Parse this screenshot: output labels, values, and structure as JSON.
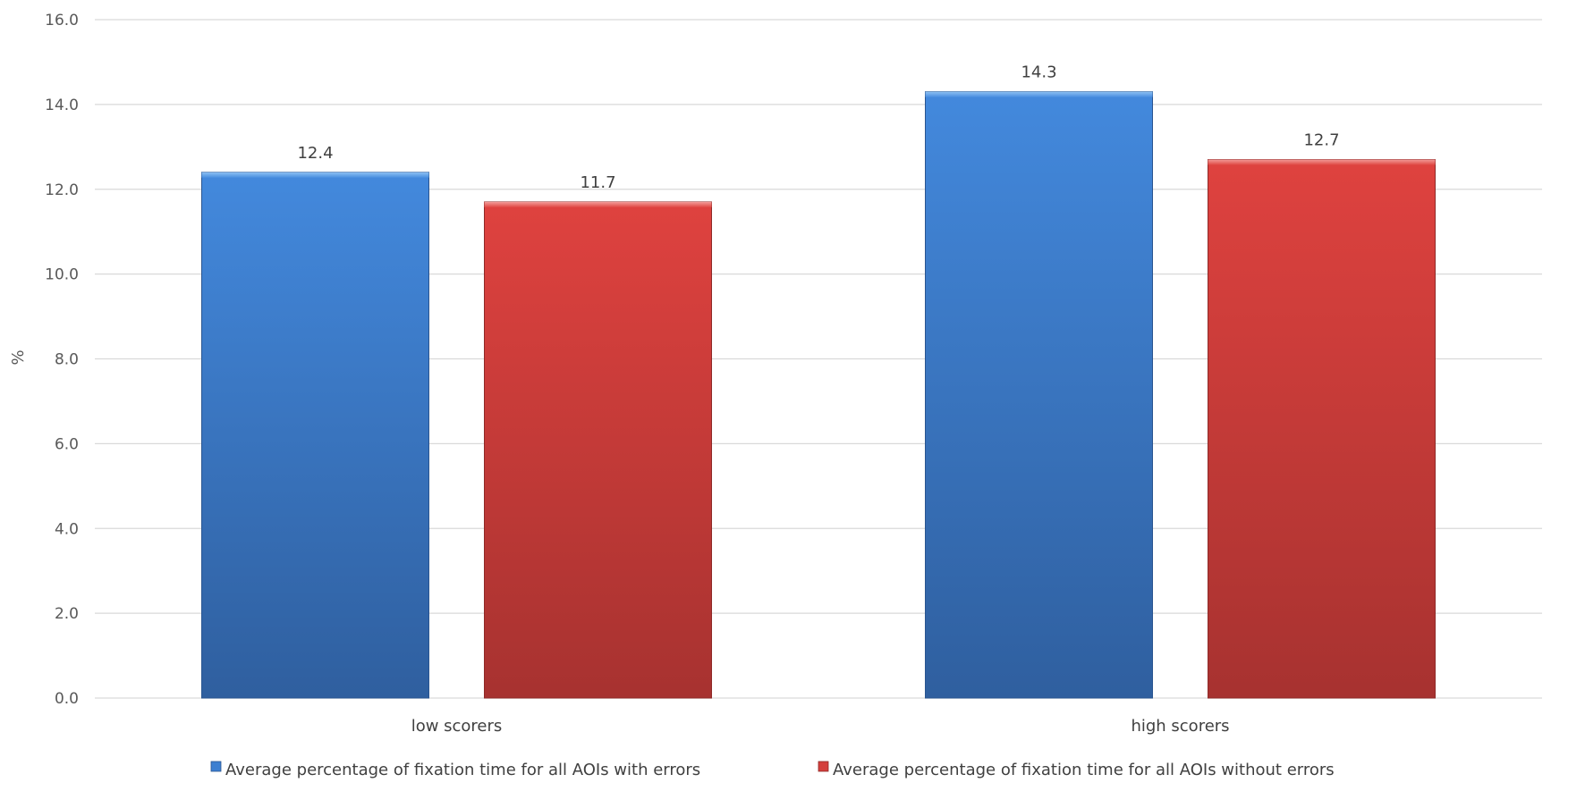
{
  "chart_data": {
    "type": "bar",
    "title": "",
    "xlabel": "",
    "ylabel": "%",
    "ylim": [
      0,
      16
    ],
    "yticks": [
      0,
      2,
      4,
      6,
      8,
      10,
      12,
      14,
      16
    ],
    "ytick_labels": [
      "0.0",
      "2.0",
      "4.0",
      "6.0",
      "8.0",
      "10.0",
      "12.0",
      "14.0",
      "16.0"
    ],
    "grid": true,
    "legend_position": "bottom",
    "categories": [
      "low scorers",
      "high scorers"
    ],
    "series": [
      {
        "name": "Average percentage of fixation time for all  AOIs with errors",
        "values": [
          12.4,
          14.3
        ],
        "labels": [
          "12.4",
          "14.3"
        ],
        "color": "#3d7fd1"
      },
      {
        "name": "Average percentage of fixation time for all AOIs without errors",
        "values": [
          11.7,
          12.7
        ],
        "labels": [
          "11.7",
          "12.7"
        ],
        "color": "#d43f3c"
      }
    ]
  }
}
